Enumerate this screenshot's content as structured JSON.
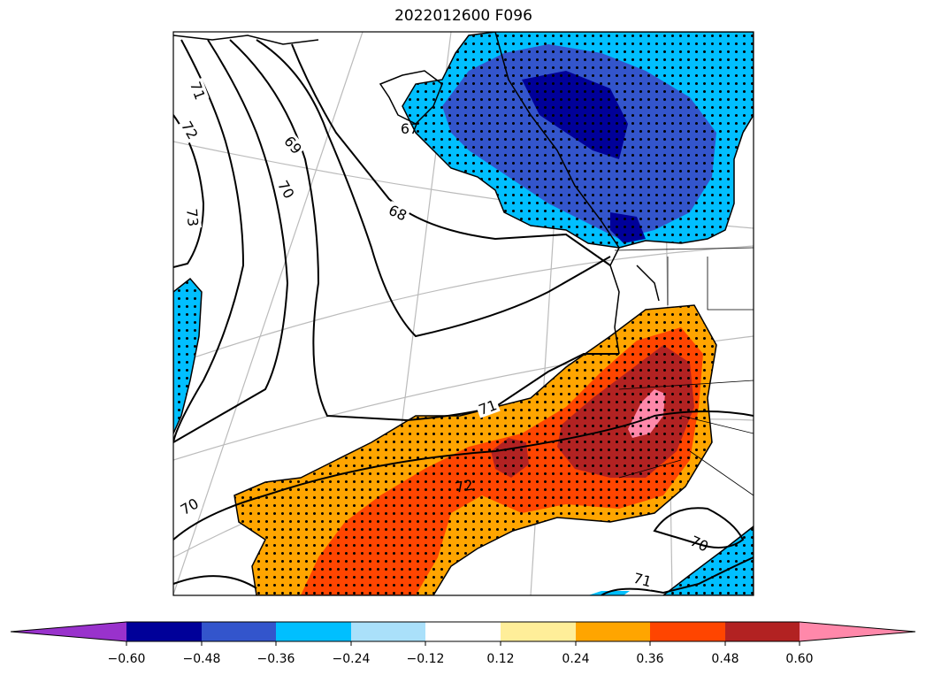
{
  "title": "2022012600 F096",
  "contour_labels": [
    "71",
    "72",
    "73",
    "69",
    "70",
    "68",
    "67",
    "71",
    "72",
    "70",
    "70",
    "71"
  ],
  "colorbar": {
    "ticks": [
      "−0.60",
      "−0.48",
      "−0.36",
      "−0.24",
      "−0.12",
      "0.12",
      "0.24",
      "0.36",
      "0.48",
      "0.60"
    ],
    "colors": [
      "#9932CC",
      "#000099",
      "#3355CC",
      "#00BFFF",
      "#AAE0FA",
      "#FFFFFF",
      "#FFEE99",
      "#FFA500",
      "#FF4500",
      "#B22222",
      "#FF88AA"
    ]
  },
  "palette": {
    "positive_low": "#FFA500",
    "positive_mid": "#FF4500",
    "positive_high": "#B22222",
    "positive_max": "#FF88AA",
    "negative_low": "#00BFFF",
    "negative_mid": "#3355CC",
    "negative_high": "#000099"
  }
}
